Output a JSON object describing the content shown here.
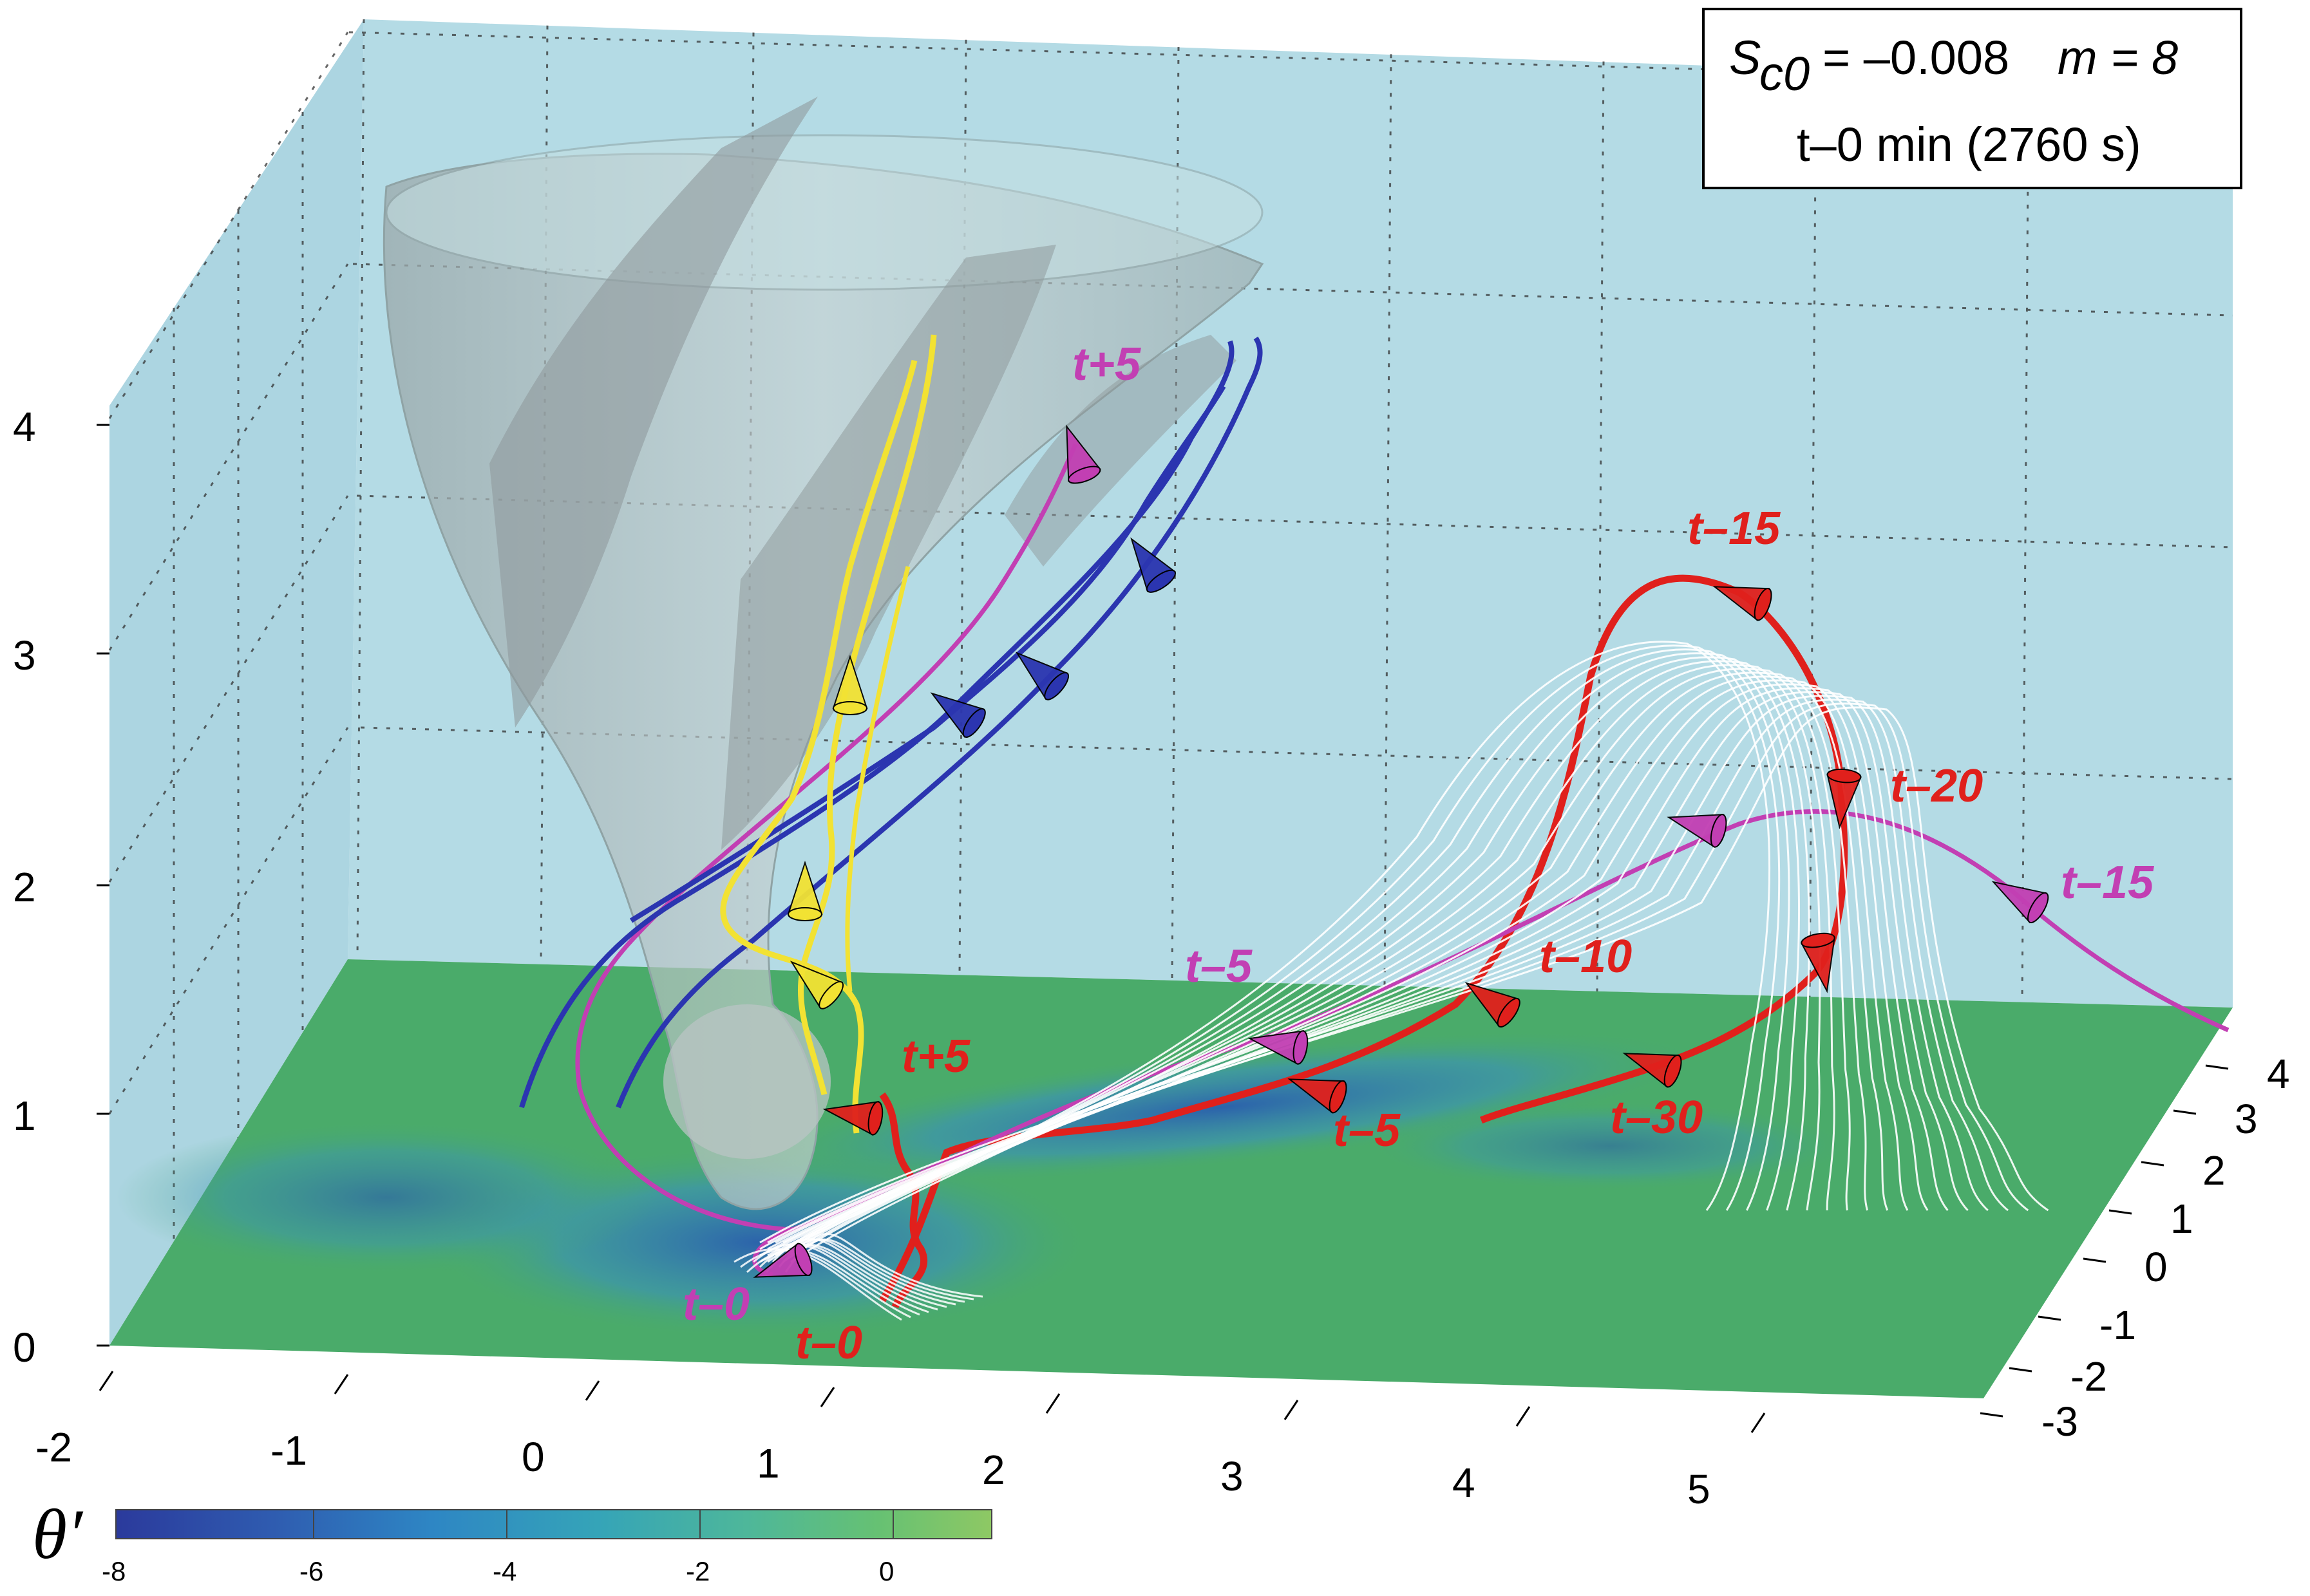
{
  "chart_data": {
    "type": "3d-trajectory",
    "info_box": {
      "param_symbol": "S",
      "param_sub": "c0",
      "param_value": "= –0.008",
      "m_text": "m = 8",
      "time_text": "t–0 min (2760 s)"
    },
    "z_ticks": [
      "0",
      "1",
      "2",
      "3",
      "4"
    ],
    "x_ticks": [
      "-2",
      "-1",
      "0",
      "1",
      "2",
      "3",
      "4",
      "5"
    ],
    "y_ticks": [
      "-3",
      "-2",
      "-1",
      "0",
      "1",
      "2",
      "3",
      "4"
    ],
    "colorbar": {
      "label": "θ′",
      "ticks": [
        "-8",
        "-6",
        "-4",
        "-2",
        "0"
      ],
      "colors": [
        "#2b3a9c",
        "#2f5cb0",
        "#2e86c4",
        "#35a4b8",
        "#4eb79a",
        "#66c173",
        "#8ec864"
      ]
    },
    "series": [
      {
        "color": "#e0201c",
        "labels": [
          "t–15",
          "t–20",
          "t–10",
          "t–5",
          "t–30",
          "t+5",
          "t–0"
        ]
      },
      {
        "color": "#c23fb3",
        "labels": [
          "t+5",
          "t–5",
          "t–15",
          "t–0"
        ]
      },
      {
        "color": "#2b35b0",
        "labels": []
      },
      {
        "color": "#f2e233",
        "labels": []
      },
      {
        "color": "#ffffff",
        "labels": []
      }
    ],
    "colors": {
      "wall": "#b4dbe5",
      "floor_green": "#4aab6a",
      "floor_blue": "#2a5fae",
      "isosurface": "#a7b5b6"
    }
  }
}
